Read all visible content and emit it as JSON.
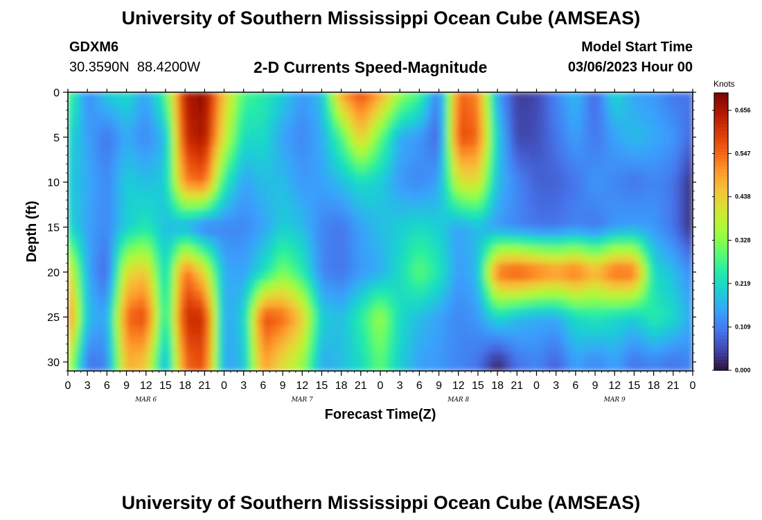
{
  "header": {
    "title_top": "University of Southern Mississippi Ocean Cube (AMSEAS)",
    "station": "GDXM6",
    "coords": "30.3590N  88.4200W",
    "subtitle": "2-D Currents Speed-Magnitude",
    "model_start_label": "Model Start Time",
    "model_start_value": "03/06/2023 Hour 00",
    "title_bottom": "University of Southern Mississippi Ocean Cube (AMSEAS)"
  },
  "chart_data": {
    "type": "heatmap",
    "title": "2-D Currents Speed-Magnitude",
    "xlabel": "Forecast Time(Z)",
    "ylabel": "Depth (ft)",
    "x_ticks": [
      "0",
      "3",
      "6",
      "9",
      "12",
      "15",
      "18",
      "21",
      "0",
      "3",
      "6",
      "9",
      "12",
      "15",
      "18",
      "21",
      "0",
      "3",
      "6",
      "9",
      "12",
      "15",
      "18",
      "21",
      "0",
      "3",
      "6",
      "9",
      "12",
      "15",
      "18",
      "21",
      "0"
    ],
    "x_day_labels": [
      "MAR 6",
      "MAR 7",
      "MAR 8",
      "MAR 9"
    ],
    "xlim_hours": [
      0,
      96
    ],
    "y_ticks": [
      0,
      5,
      10,
      15,
      20,
      25,
      30
    ],
    "ylim_ft": [
      0,
      31
    ],
    "colorbar": {
      "unit": "Knots",
      "ticks": [
        "0.656",
        "0.547",
        "0.438",
        "0.328",
        "0.219",
        "0.109",
        "0.000"
      ],
      "range": [
        0.0,
        0.7
      ],
      "colors": [
        "#30123b",
        "#4145ab",
        "#4675ed",
        "#39a2fc",
        "#1bcfd4",
        "#24eca6",
        "#61fc6c",
        "#a4fc3b",
        "#d1e834",
        "#f3c63a",
        "#fe9b2d",
        "#f36315",
        "#d93806",
        "#b11901",
        "#7a0402"
      ]
    },
    "hours": [
      0,
      3,
      6,
      9,
      12,
      15,
      18,
      21,
      24,
      27,
      30,
      33,
      36,
      39,
      42,
      45,
      48,
      51,
      54,
      57,
      60,
      63,
      66,
      69,
      72,
      75,
      78,
      81,
      84,
      87,
      90,
      93,
      96
    ],
    "depths_ft": [
      0,
      5,
      10,
      15,
      20,
      25,
      30
    ],
    "speed_knots": [
      [
        0.3,
        0.12,
        0.2,
        0.22,
        0.15,
        0.28,
        0.65,
        0.68,
        0.45,
        0.28,
        0.25,
        0.2,
        0.14,
        0.18,
        0.5,
        0.58,
        0.5,
        0.35,
        0.28,
        0.1,
        0.55,
        0.52,
        0.15,
        0.04,
        0.05,
        0.12,
        0.18,
        0.08,
        0.22,
        0.15,
        0.14,
        0.1,
        0.1
      ],
      [
        0.22,
        0.15,
        0.1,
        0.16,
        0.12,
        0.18,
        0.62,
        0.66,
        0.4,
        0.22,
        0.22,
        0.15,
        0.12,
        0.16,
        0.28,
        0.45,
        0.3,
        0.16,
        0.14,
        0.08,
        0.58,
        0.55,
        0.2,
        0.05,
        0.06,
        0.1,
        0.15,
        0.1,
        0.15,
        0.18,
        0.16,
        0.14,
        0.08
      ],
      [
        0.2,
        0.16,
        0.12,
        0.2,
        0.18,
        0.2,
        0.52,
        0.55,
        0.25,
        0.15,
        0.18,
        0.18,
        0.14,
        0.15,
        0.18,
        0.22,
        0.2,
        0.14,
        0.12,
        0.15,
        0.4,
        0.42,
        0.18,
        0.12,
        0.08,
        0.08,
        0.1,
        0.14,
        0.12,
        0.1,
        0.12,
        0.1,
        0.02
      ],
      [
        0.22,
        0.15,
        0.12,
        0.2,
        0.24,
        0.18,
        0.16,
        0.1,
        0.12,
        0.12,
        0.15,
        0.2,
        0.18,
        0.12,
        0.1,
        0.15,
        0.18,
        0.2,
        0.22,
        0.2,
        0.15,
        0.18,
        0.14,
        0.12,
        0.1,
        0.1,
        0.12,
        0.1,
        0.14,
        0.15,
        0.14,
        0.1,
        0.02
      ],
      [
        0.45,
        0.16,
        0.08,
        0.42,
        0.45,
        0.2,
        0.55,
        0.42,
        0.16,
        0.15,
        0.22,
        0.32,
        0.25,
        0.12,
        0.1,
        0.14,
        0.16,
        0.22,
        0.3,
        0.24,
        0.14,
        0.18,
        0.55,
        0.58,
        0.55,
        0.52,
        0.55,
        0.48,
        0.56,
        0.55,
        0.22,
        0.18,
        0.12
      ],
      [
        0.55,
        0.18,
        0.15,
        0.55,
        0.58,
        0.22,
        0.62,
        0.62,
        0.15,
        0.2,
        0.58,
        0.55,
        0.45,
        0.2,
        0.18,
        0.25,
        0.35,
        0.22,
        0.18,
        0.15,
        0.12,
        0.14,
        0.22,
        0.18,
        0.16,
        0.16,
        0.22,
        0.24,
        0.22,
        0.2,
        0.25,
        0.22,
        0.15
      ],
      [
        0.4,
        0.1,
        0.12,
        0.48,
        0.45,
        0.15,
        0.55,
        0.58,
        0.15,
        0.18,
        0.5,
        0.42,
        0.35,
        0.16,
        0.18,
        0.22,
        0.3,
        0.2,
        0.15,
        0.14,
        0.12,
        0.1,
        0.02,
        0.1,
        0.12,
        0.08,
        0.15,
        0.12,
        0.15,
        0.1,
        0.12,
        0.1,
        0.12
      ]
    ]
  }
}
